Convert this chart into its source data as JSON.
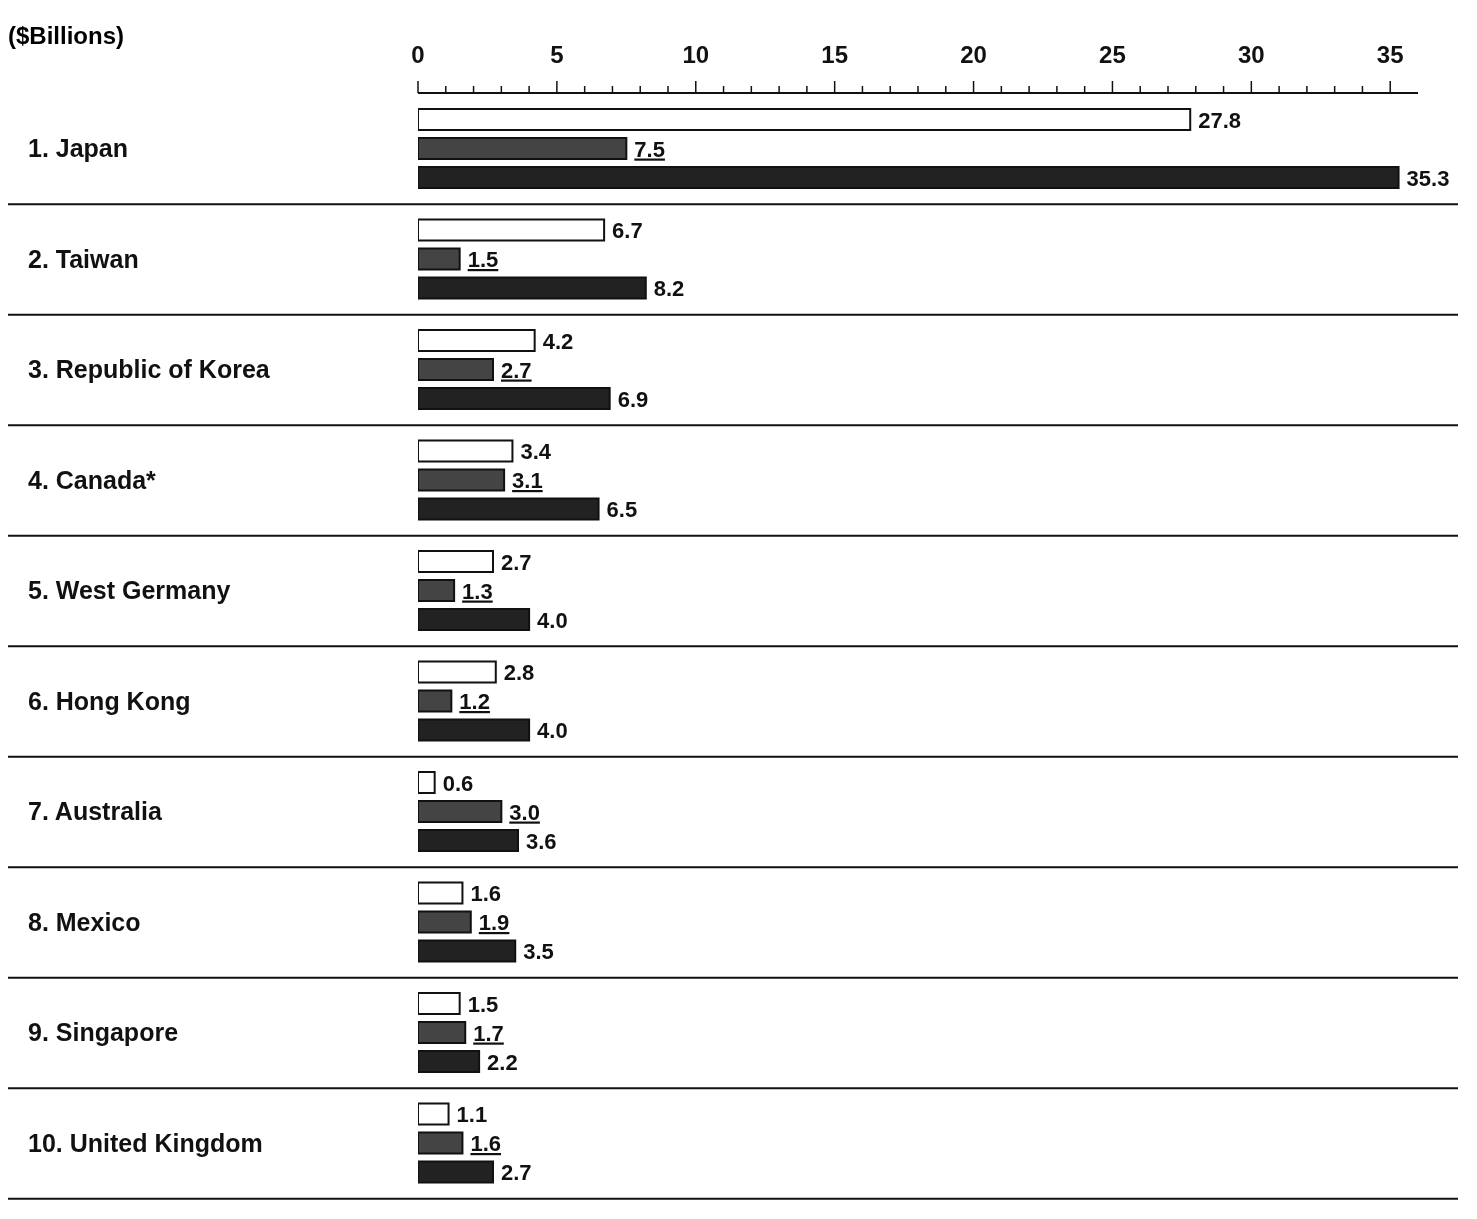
{
  "chart_data": {
    "type": "bar",
    "orientation": "horizontal",
    "xlabel": "($Billions)",
    "categories": [
      "1. Japan",
      "2. Taiwan",
      "3. Republic of Korea",
      "4. Canada*",
      "5. West Germany",
      "6. Hong Kong",
      "7. Australia",
      "8. Mexico",
      "9. Singapore",
      "10. United Kingdom"
    ],
    "series": [
      {
        "color": "#ffffff",
        "values": [
          27.8,
          6.7,
          4.2,
          3.4,
          2.7,
          2.8,
          0.6,
          1.6,
          1.5,
          1.1
        ],
        "value_labels": [
          "27.8",
          "6.7",
          "4.2",
          "3.4",
          "2.7",
          "2.8",
          "0.6",
          "1.6",
          "1.5",
          "1.1"
        ]
      },
      {
        "color": "#444444",
        "values": [
          7.5,
          1.5,
          2.7,
          3.1,
          1.3,
          1.2,
          3.0,
          1.9,
          1.7,
          1.6
        ],
        "value_labels": [
          "7.5",
          "1.5",
          "2.7",
          "3.1",
          "1.3",
          "1.2",
          "3.0",
          "1.9",
          "1.7",
          "1.6"
        ]
      },
      {
        "color": "#222222",
        "values": [
          35.3,
          8.2,
          6.9,
          6.5,
          4.0,
          4.0,
          3.6,
          3.5,
          2.2,
          2.7
        ],
        "value_labels": [
          "35.3",
          "8.2",
          "6.9",
          "6.5",
          "4.0",
          "4.0",
          "3.6",
          "3.5",
          "2.2",
          "2.7"
        ]
      }
    ],
    "xlim": [
      0,
      36
    ],
    "xticks": [
      0,
      {
        "value": 1,
        "label": null
      },
      {
        "value": 2,
        "label": null
      },
      {
        "value": 3,
        "label": null
      },
      {
        "value": 4,
        "label": null
      },
      5,
      {
        "value": 6,
        "label": null
      },
      {
        "value": 7,
        "label": null
      },
      {
        "value": 8,
        "label": null
      },
      {
        "value": 9,
        "label": null
      },
      10,
      {
        "value": 11,
        "label": null
      },
      {
        "value": 12,
        "label": null
      },
      {
        "value": 13,
        "label": null
      },
      {
        "value": 14,
        "label": null
      },
      15,
      {
        "value": 16,
        "label": null
      },
      {
        "value": 17,
        "label": null
      },
      {
        "value": 18,
        "label": null
      },
      {
        "value": 19,
        "label": null
      },
      20,
      {
        "value": 21,
        "label": null
      },
      {
        "value": 22,
        "label": null
      },
      {
        "value": 23,
        "label": null
      },
      {
        "value": 24,
        "label": null
      },
      25,
      {
        "value": 26,
        "label": null
      },
      {
        "value": 27,
        "label": null
      },
      {
        "value": 28,
        "label": null
      },
      {
        "value": 29,
        "label": null
      },
      30,
      {
        "value": 31,
        "label": null
      },
      {
        "value": 32,
        "label": null
      },
      {
        "value": 33,
        "label": null
      },
      {
        "value": 34,
        "label": null
      },
      35
    ],
    "grid": false,
    "legend": false
  }
}
